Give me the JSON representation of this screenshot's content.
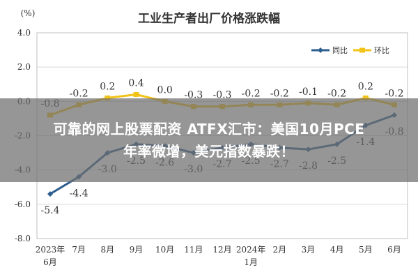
{
  "chart_data": {
    "type": "line",
    "title": "工业生产者出厂价格涨跌幅",
    "ylabel": "(%)",
    "xlabel": "",
    "ylim": [
      -8.0,
      4.0
    ],
    "yticks": [
      "4.0",
      "2.0",
      "0.0",
      "-2.0",
      "-4.0",
      "-6.0",
      "-8.0"
    ],
    "ytick_values": [
      4,
      2,
      0,
      -2,
      -4,
      -6,
      -8
    ],
    "categories": [
      "2023年6月",
      "7月",
      "8月",
      "9月",
      "10月",
      "11月",
      "12月",
      "2024年1月",
      "2月",
      "3月",
      "4月",
      "5月",
      "6月"
    ],
    "category_lines": [
      [
        "2023年",
        "6月"
      ],
      [
        "7月"
      ],
      [
        "8月"
      ],
      [
        "9月"
      ],
      [
        "10月"
      ],
      [
        "11月"
      ],
      [
        "12月"
      ],
      [
        "2024年",
        "1月"
      ],
      [
        "2月"
      ],
      [
        "3月"
      ],
      [
        "4月"
      ],
      [
        "5月"
      ],
      [
        "6月"
      ]
    ],
    "grid": true,
    "legend_position": "top-right",
    "series": [
      {
        "name": "同比",
        "color": "#2e5d8f",
        "values": [
          -5.4,
          -4.4,
          -3.0,
          -2.5,
          -2.6,
          -3.0,
          -2.7,
          -2.5,
          -2.7,
          -2.8,
          -2.5,
          -1.4,
          -0.8
        ],
        "labels": [
          "-5.4",
          "-4.4",
          "-3.0",
          "-2.5",
          "-2.6",
          "-3.0",
          "-2.7",
          "-2.5",
          "-2.7",
          "-2.8",
          "-2.5",
          "-1.4",
          "-0.8"
        ]
      },
      {
        "name": "环比",
        "color": "#f2c318",
        "values": [
          -0.8,
          -0.2,
          0.2,
          0.4,
          0.0,
          -0.3,
          -0.3,
          -0.2,
          -0.2,
          -0.1,
          -0.2,
          0.2,
          -0.2
        ],
        "labels": [
          "-0.8",
          "-0.2",
          "0.2",
          "0.4",
          "0.0",
          "-0.3",
          "-0.3",
          "-0.2",
          "-0.2",
          "-0.1",
          "-0.2",
          "0.2",
          "-0.2"
        ]
      }
    ]
  },
  "banner": {
    "line1": "可靠的网上股票配资 ATFX汇市：美国10月PCE",
    "line2": "年率微增，美元指数暴跌！"
  }
}
